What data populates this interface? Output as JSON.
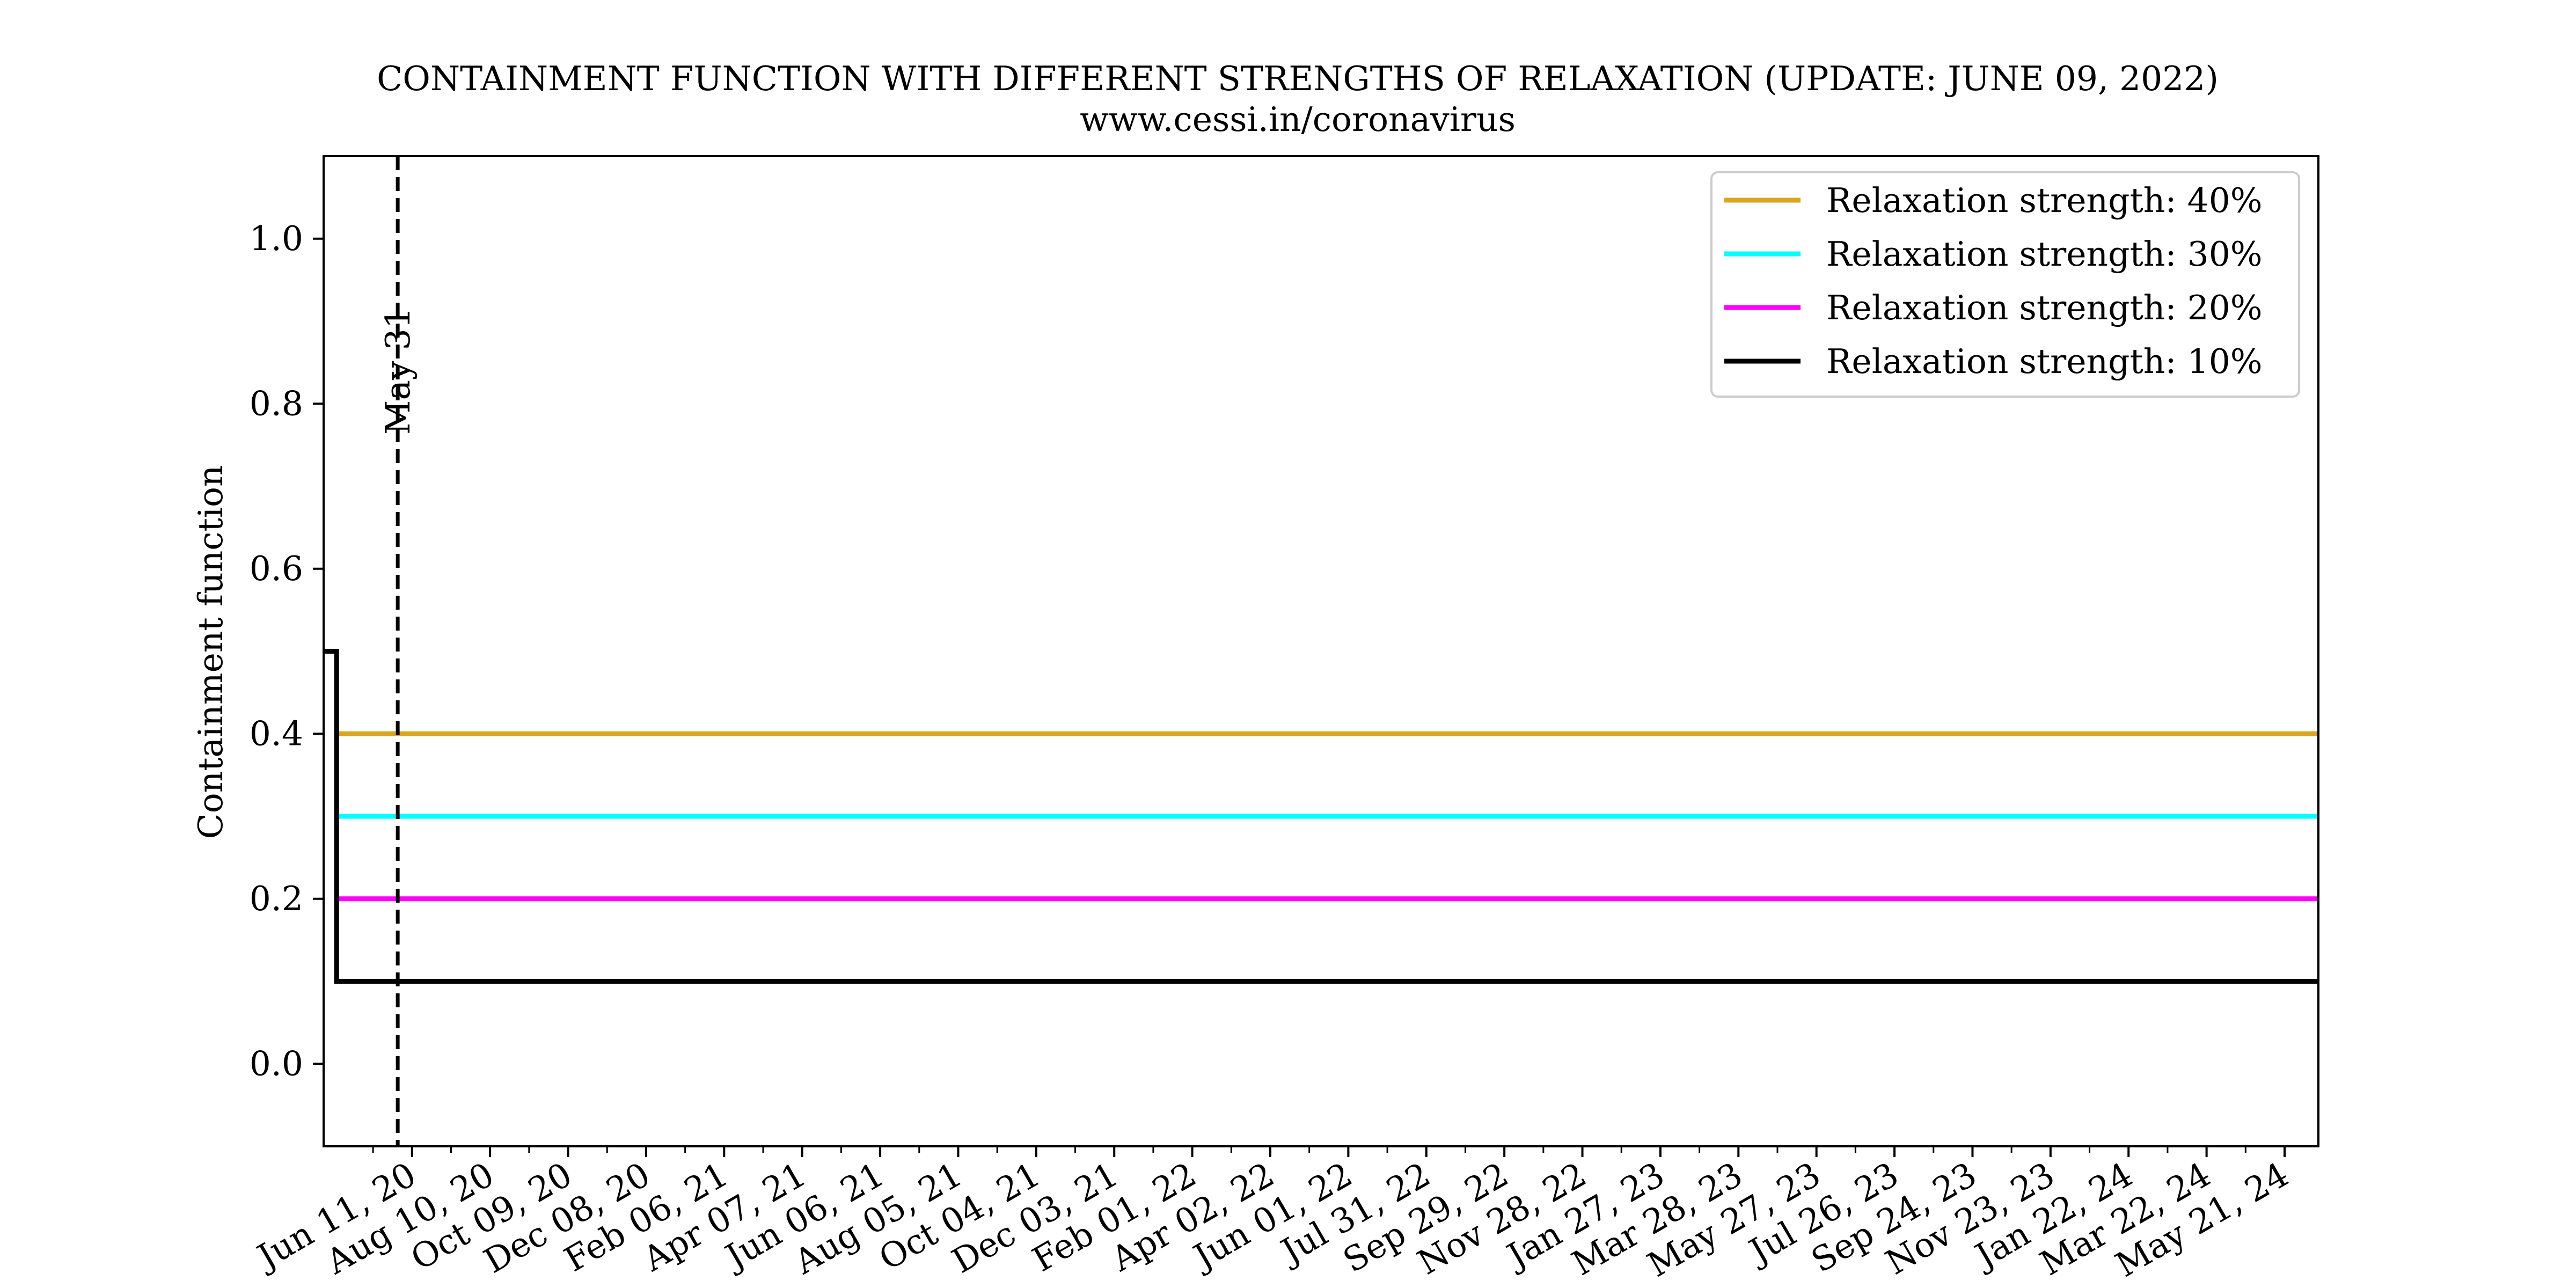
{
  "chart_data": {
    "type": "line",
    "title": "CONTAINMENT FUNCTION WITH DIFFERENT STRENGTHS OF RELAXATION (UPDATE: JUNE 09, 2022)",
    "subtitle": "www.cessi.in/coronavirus",
    "xlabel": "",
    "ylabel": "Containment function",
    "xlim": [
      "2020-04-04",
      "2024-06-16"
    ],
    "ylim": [
      -0.1,
      1.1
    ],
    "x_tick_labels": [
      "Jun 11, 20",
      "Aug 10, 20",
      "Oct 09, 20",
      "Dec 08, 20",
      "Feb 06, 21",
      "Apr 07, 21",
      "Jun 06, 21",
      "Aug 05, 21",
      "Oct 04, 21",
      "Dec 03, 21",
      "Feb 01, 22",
      "Apr 02, 22",
      "Jun 01, 22",
      "Jul 31, 22",
      "Sep 29, 22",
      "Nov 28, 22",
      "Jan 27, 23",
      "Mar 28, 23",
      "May 27, 23",
      "Jul 26, 23",
      "Sep 24, 23",
      "Nov 23, 23",
      "Jan 22, 24",
      "Mar 22, 24",
      "May 21, 24"
    ],
    "x_tick_dates": [
      "2020-06-11",
      "2020-08-10",
      "2020-10-09",
      "2020-12-08",
      "2021-02-06",
      "2021-04-07",
      "2021-06-06",
      "2021-08-05",
      "2021-10-04",
      "2021-12-03",
      "2022-02-01",
      "2022-04-02",
      "2022-06-01",
      "2022-07-31",
      "2022-09-29",
      "2022-11-28",
      "2023-01-27",
      "2023-03-28",
      "2023-05-27",
      "2023-07-26",
      "2023-09-24",
      "2023-11-23",
      "2024-01-22",
      "2024-03-22",
      "2024-05-21"
    ],
    "y_ticks": [
      0.0,
      0.2,
      0.4,
      0.6,
      0.8,
      1.0
    ],
    "y_tick_labels": [
      "0.0",
      "0.2",
      "0.4",
      "0.6",
      "0.8",
      "1.0"
    ],
    "annotations": [
      {
        "text": "May 31",
        "x": "2020-05-31",
        "style": "dashed vertical line"
      }
    ],
    "legend_position": "top-right",
    "grid": false,
    "series": [
      {
        "name": "Relaxation strength: 40%",
        "color": "#DAA520",
        "x": [
          "2020-04-14",
          "2024-06-16"
        ],
        "y": [
          0.4,
          0.4
        ]
      },
      {
        "name": "Relaxation strength: 30%",
        "color": "#00FFFF",
        "x": [
          "2020-04-14",
          "2024-06-16"
        ],
        "y": [
          0.3,
          0.3
        ]
      },
      {
        "name": "Relaxation strength: 20%",
        "color": "#FF00FF",
        "x": [
          "2020-04-14",
          "2024-06-16"
        ],
        "y": [
          0.2,
          0.2
        ]
      },
      {
        "name": "Relaxation strength: 10%",
        "color": "#000000",
        "x": [
          "2020-04-04",
          "2020-04-14",
          "2020-04-14",
          "2024-06-16"
        ],
        "y": [
          0.5,
          0.5,
          0.1,
          0.1
        ]
      }
    ]
  }
}
